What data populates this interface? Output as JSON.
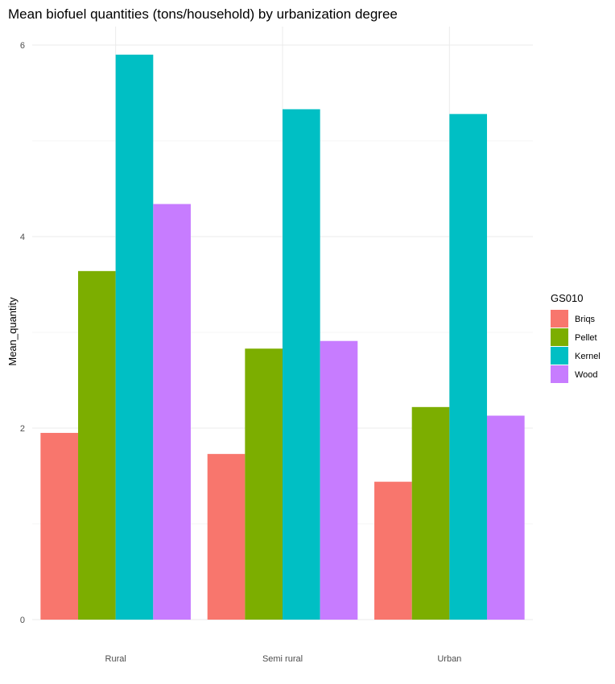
{
  "chart_data": {
    "type": "bar",
    "title": "Mean biofuel quantities (tons/household) by urbanization degree",
    "xlabel": "",
    "ylabel": "Mean_quantity",
    "categories": [
      "Rural",
      "Semi rural",
      "Urban"
    ],
    "ylim": [
      0,
      6.1
    ],
    "yticks": [
      0,
      2,
      4,
      6
    ],
    "grid": true,
    "legend": {
      "title": "GS010",
      "position": "right"
    },
    "series": [
      {
        "name": "Briqs",
        "color": "#F8766D",
        "values": [
          1.95,
          1.73,
          1.44
        ]
      },
      {
        "name": "Pellet",
        "color": "#7CAE00",
        "values": [
          3.64,
          2.83,
          2.22
        ]
      },
      {
        "name": "Kernel",
        "color": "#00BFC4",
        "values": [
          5.9,
          5.33,
          5.28
        ]
      },
      {
        "name": "Wood",
        "color": "#C77CFF",
        "values": [
          4.34,
          2.91,
          2.13
        ]
      }
    ]
  }
}
